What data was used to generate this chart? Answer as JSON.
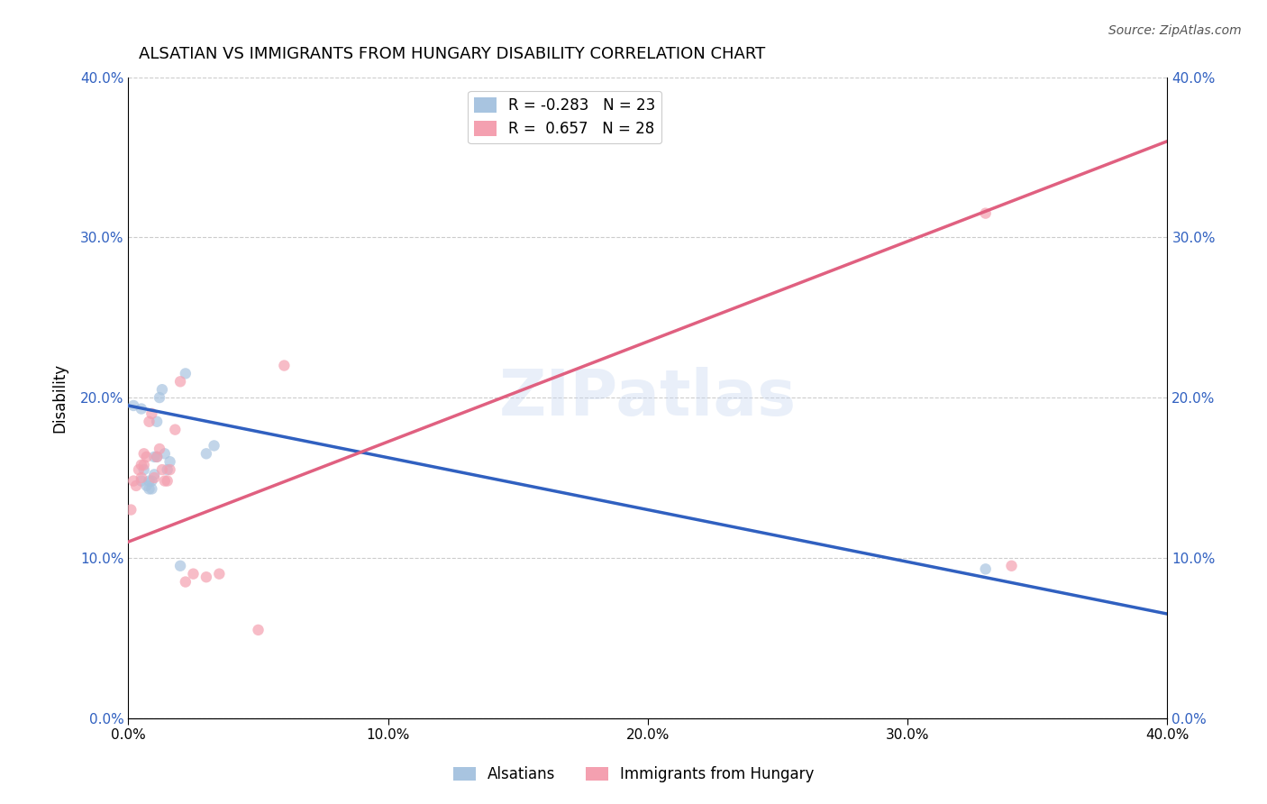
{
  "title": "ALSATIAN VS IMMIGRANTS FROM HUNGARY DISABILITY CORRELATION CHART",
  "source": "Source: ZipAtlas.com",
  "xlabel": "",
  "ylabel": "Disability",
  "xlim": [
    0.0,
    0.4
  ],
  "ylim": [
    0.0,
    0.4
  ],
  "x_ticks": [
    0.0,
    0.1,
    0.2,
    0.3,
    0.4
  ],
  "y_ticks": [
    0.0,
    0.1,
    0.2,
    0.3,
    0.4
  ],
  "x_tick_labels": [
    "0.0%",
    "10.0%",
    "20.0%",
    "30.0%",
    "40.0%"
  ],
  "y_tick_labels": [
    "0.0%",
    "10.0%",
    "20.0%",
    "30.0%",
    "40.0%"
  ],
  "watermark": "ZIPatlas",
  "legend_label1": "R = -0.283   N = 23",
  "legend_label2": "R =  0.657   N = 28",
  "legend_color1": "#a8c4e0",
  "legend_color2": "#f4a0b0",
  "alsatians_x": [
    0.002,
    0.005,
    0.005,
    0.006,
    0.007,
    0.008,
    0.008,
    0.009,
    0.009,
    0.01,
    0.01,
    0.011,
    0.011,
    0.012,
    0.013,
    0.014,
    0.015,
    0.016,
    0.02,
    0.022,
    0.03,
    0.033,
    0.33
  ],
  "alsatians_y": [
    0.195,
    0.193,
    0.148,
    0.155,
    0.145,
    0.148,
    0.143,
    0.143,
    0.148,
    0.152,
    0.163,
    0.163,
    0.185,
    0.2,
    0.205,
    0.165,
    0.155,
    0.16,
    0.095,
    0.215,
    0.165,
    0.17,
    0.093
  ],
  "hungary_x": [
    0.001,
    0.002,
    0.003,
    0.004,
    0.005,
    0.005,
    0.006,
    0.006,
    0.007,
    0.008,
    0.009,
    0.01,
    0.011,
    0.012,
    0.013,
    0.014,
    0.015,
    0.016,
    0.018,
    0.02,
    0.022,
    0.025,
    0.03,
    0.035,
    0.05,
    0.06,
    0.33,
    0.34
  ],
  "hungary_y": [
    0.13,
    0.148,
    0.145,
    0.155,
    0.15,
    0.158,
    0.165,
    0.158,
    0.163,
    0.185,
    0.19,
    0.15,
    0.163,
    0.168,
    0.155,
    0.148,
    0.148,
    0.155,
    0.18,
    0.21,
    0.085,
    0.09,
    0.088,
    0.09,
    0.055,
    0.22,
    0.315,
    0.095
  ],
  "blue_line_x": [
    0.0,
    0.4
  ],
  "blue_line_y": [
    0.195,
    0.065
  ],
  "pink_line_x": [
    0.0,
    0.4
  ],
  "pink_line_y": [
    0.11,
    0.36
  ],
  "dot_color_blue": "#a8c4e0",
  "dot_color_pink": "#f4a0b0",
  "line_color_blue": "#3060c0",
  "line_color_pink": "#e06080",
  "dot_size": 80,
  "dot_alpha": 0.7,
  "background": "#ffffff",
  "grid_color": "#cccccc",
  "bottom_label1": "Alsatians",
  "bottom_label2": "Immigrants from Hungary"
}
